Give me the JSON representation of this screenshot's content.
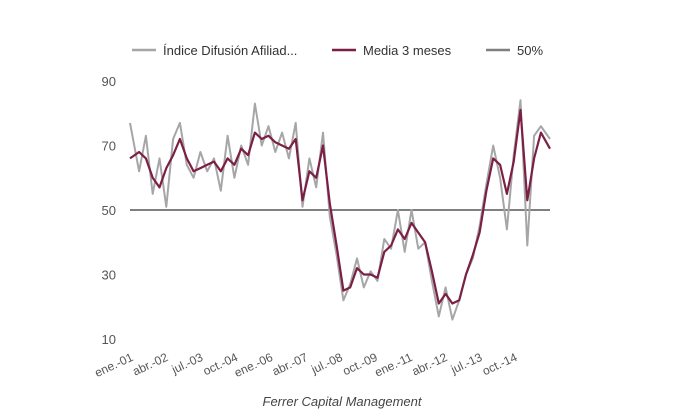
{
  "chart_data": {
    "type": "line",
    "title": "",
    "xlabel": "",
    "ylabel": "",
    "ylim": [
      10,
      90
    ],
    "yticks": [
      10,
      30,
      50,
      70,
      90
    ],
    "grid": false,
    "legend_position": "top",
    "x_tick_labels": [
      "ene.-01",
      "abr.-02",
      "jul.-03",
      "oct.-04",
      "ene.-06",
      "abr.-07",
      "jul.-08",
      "oct.-09",
      "ene.-11",
      "abr.-12",
      "jul.-13",
      "oct.-14"
    ],
    "x_range": [
      "2001-01",
      "2016-06"
    ],
    "source": "Ferrer Capital Management",
    "series": [
      {
        "name": "Índice Difusión Afiliad...",
        "color": "#a6a6a6",
        "points": [
          [
            "2001-01",
            77
          ],
          [
            "2001-05",
            62
          ],
          [
            "2001-08",
            73
          ],
          [
            "2001-11",
            55
          ],
          [
            "2002-02",
            66
          ],
          [
            "2002-05",
            51
          ],
          [
            "2002-08",
            72
          ],
          [
            "2002-11",
            77
          ],
          [
            "2003-02",
            64
          ],
          [
            "2003-05",
            60
          ],
          [
            "2003-08",
            68
          ],
          [
            "2003-11",
            62
          ],
          [
            "2004-02",
            66
          ],
          [
            "2004-05",
            56
          ],
          [
            "2004-08",
            73
          ],
          [
            "2004-11",
            60
          ],
          [
            "2005-02",
            70
          ],
          [
            "2005-05",
            64
          ],
          [
            "2005-08",
            83
          ],
          [
            "2005-11",
            70
          ],
          [
            "2006-02",
            76
          ],
          [
            "2006-05",
            68
          ],
          [
            "2006-08",
            74
          ],
          [
            "2006-11",
            66
          ],
          [
            "2007-02",
            77
          ],
          [
            "2007-05",
            51
          ],
          [
            "2007-08",
            66
          ],
          [
            "2007-11",
            57
          ],
          [
            "2008-02",
            74
          ],
          [
            "2008-05",
            48
          ],
          [
            "2008-08",
            36
          ],
          [
            "2008-11",
            22
          ],
          [
            "2009-02",
            27
          ],
          [
            "2009-05",
            35
          ],
          [
            "2009-08",
            26
          ],
          [
            "2009-11",
            31
          ],
          [
            "2010-02",
            28
          ],
          [
            "2010-05",
            41
          ],
          [
            "2010-08",
            38
          ],
          [
            "2010-11",
            50
          ],
          [
            "2011-02",
            37
          ],
          [
            "2011-05",
            50
          ],
          [
            "2011-08",
            38
          ],
          [
            "2011-11",
            40
          ],
          [
            "2012-02",
            28
          ],
          [
            "2012-05",
            17
          ],
          [
            "2012-08",
            26
          ],
          [
            "2012-11",
            16
          ],
          [
            "2013-02",
            22
          ],
          [
            "2013-05",
            30
          ],
          [
            "2013-08",
            35
          ],
          [
            "2013-11",
            45
          ],
          [
            "2014-02",
            58
          ],
          [
            "2014-05",
            70
          ],
          [
            "2014-08",
            60
          ],
          [
            "2014-11",
            44
          ],
          [
            "2015-02",
            67
          ],
          [
            "2015-05",
            84
          ],
          [
            "2015-08",
            39
          ],
          [
            "2015-11",
            73
          ],
          [
            "2016-02",
            76
          ],
          [
            "2016-06",
            72
          ]
        ]
      },
      {
        "name": "Media 3 meses",
        "color": "#7b1f45",
        "points": [
          [
            "2001-01",
            66
          ],
          [
            "2001-05",
            68
          ],
          [
            "2001-08",
            66
          ],
          [
            "2001-11",
            60
          ],
          [
            "2002-02",
            57
          ],
          [
            "2002-05",
            63
          ],
          [
            "2002-08",
            67
          ],
          [
            "2002-11",
            72
          ],
          [
            "2003-02",
            66
          ],
          [
            "2003-05",
            62
          ],
          [
            "2003-08",
            63
          ],
          [
            "2003-11",
            64
          ],
          [
            "2004-02",
            65
          ],
          [
            "2004-05",
            62
          ],
          [
            "2004-08",
            66
          ],
          [
            "2004-11",
            64
          ],
          [
            "2005-02",
            69
          ],
          [
            "2005-05",
            67
          ],
          [
            "2005-08",
            74
          ],
          [
            "2005-11",
            72
          ],
          [
            "2006-02",
            73
          ],
          [
            "2006-05",
            71
          ],
          [
            "2006-08",
            70
          ],
          [
            "2006-11",
            69
          ],
          [
            "2007-02",
            72
          ],
          [
            "2007-05",
            53
          ],
          [
            "2007-08",
            62
          ],
          [
            "2007-11",
            60
          ],
          [
            "2008-02",
            70
          ],
          [
            "2008-05",
            52
          ],
          [
            "2008-08",
            39
          ],
          [
            "2008-11",
            25
          ],
          [
            "2009-02",
            26
          ],
          [
            "2009-05",
            32
          ],
          [
            "2009-08",
            30
          ],
          [
            "2009-11",
            30
          ],
          [
            "2010-02",
            29
          ],
          [
            "2010-05",
            37
          ],
          [
            "2010-08",
            39
          ],
          [
            "2010-11",
            44
          ],
          [
            "2011-02",
            41
          ],
          [
            "2011-05",
            46
          ],
          [
            "2011-08",
            43
          ],
          [
            "2011-11",
            40
          ],
          [
            "2012-02",
            31
          ],
          [
            "2012-05",
            21
          ],
          [
            "2012-08",
            24
          ],
          [
            "2012-11",
            21
          ],
          [
            "2013-02",
            22
          ],
          [
            "2013-05",
            30
          ],
          [
            "2013-08",
            36
          ],
          [
            "2013-11",
            43
          ],
          [
            "2014-02",
            56
          ],
          [
            "2014-05",
            66
          ],
          [
            "2014-08",
            64
          ],
          [
            "2014-11",
            55
          ],
          [
            "2015-02",
            65
          ],
          [
            "2015-05",
            81
          ],
          [
            "2015-08",
            53
          ],
          [
            "2015-11",
            66
          ],
          [
            "2016-02",
            74
          ],
          [
            "2016-06",
            69
          ]
        ]
      },
      {
        "name": "50%",
        "color": "#000000",
        "legend_color": "#808080",
        "points": [
          [
            "2001-01",
            50
          ],
          [
            "2016-06",
            50
          ]
        ]
      }
    ]
  }
}
